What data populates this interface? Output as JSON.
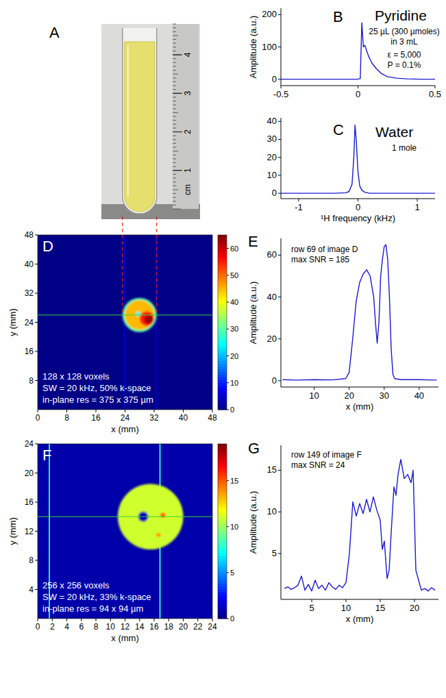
{
  "chart_data": [
    {
      "type": "photo",
      "panel": "A",
      "ylim": [
        0,
        4.8
      ],
      "yticks": [
        1,
        2,
        3,
        4
      ],
      "ylabel": "cm"
    },
    {
      "type": "line",
      "panel": "B",
      "title": "Pyridine",
      "annotations": [
        "25 µL (300 µmoles)",
        "in 3 mL",
        "ε = 5,000",
        "P = 0.1%"
      ],
      "ylabel": "Amplitude (a.u.)",
      "xlim": [
        -0.5,
        0.5
      ],
      "xticks": [
        -0.5,
        0,
        0.5
      ],
      "ylim": [
        -20,
        220
      ],
      "yticks": [
        0,
        100,
        200
      ],
      "color": "#1a1acc",
      "x": [
        -0.5,
        -0.3,
        -0.1,
        0,
        0.015,
        0.025,
        0.035,
        0.045,
        0.055,
        0.07,
        0.09,
        0.12,
        0.15,
        0.19,
        0.25,
        0.32,
        0.4,
        0.5
      ],
      "values": [
        0,
        0,
        0,
        0,
        2,
        175,
        100,
        105,
        90,
        70,
        50,
        32,
        18,
        8,
        3,
        1,
        0,
        0
      ]
    },
    {
      "type": "line",
      "panel": "C",
      "title": "Water",
      "annotations": [
        "1 mole"
      ],
      "xlabel": "¹H frequency (kHz)",
      "xlim": [
        -1.3,
        1.3
      ],
      "xticks": [
        -1,
        0,
        1
      ],
      "ylim": [
        -3,
        42
      ],
      "yticks": [
        0,
        10,
        20,
        30,
        40
      ],
      "color": "#1a1acc",
      "x": [
        -1.3,
        -0.8,
        -0.4,
        -0.2,
        -0.15,
        -0.1,
        -0.07,
        -0.05,
        -0.03,
        0,
        0.03,
        0.07,
        0.12,
        0.2,
        0.4,
        0.8,
        1.3
      ],
      "values": [
        0,
        0,
        0,
        0.3,
        1,
        5,
        20,
        38,
        30,
        12,
        4,
        1.5,
        0.5,
        0,
        0,
        0,
        0
      ]
    },
    {
      "type": "heatmap",
      "panel": "D",
      "annotations": [
        "128 x 128 voxels",
        "SW = 20 kHz, 50% k-space",
        "in-plane res = 375 x 375 µm"
      ],
      "xlabel": "x (mm)",
      "ylabel": "y (mm)",
      "xlim": [
        0,
        48
      ],
      "xticks": [
        0,
        8,
        16,
        24,
        32,
        40,
        48
      ],
      "ylim": [
        0,
        48
      ],
      "yticks": [
        8,
        16,
        24,
        32,
        40,
        48
      ],
      "background": 0.5,
      "lines": [
        {
          "x": 23.8,
          "value": 5
        },
        {
          "x": 32.5,
          "value": 5
        }
      ],
      "shapes": [
        {
          "x": 28,
          "y": 26,
          "r": 4.7,
          "value": 30
        },
        {
          "x": 28,
          "y": 26,
          "r": 4.1,
          "value": 45
        },
        {
          "x": 30,
          "y": 25,
          "r": 2,
          "value": 55
        },
        {
          "x": 30.5,
          "y": 24.8,
          "r": 1.2,
          "value": 63
        },
        {
          "x": 27.6,
          "y": 26.3,
          "r": 0.6,
          "value": 25
        }
      ],
      "profile_y": 26,
      "colorbar": {
        "range": [
          0,
          65
        ],
        "ticks": [
          0,
          10,
          20,
          30,
          40,
          50,
          60
        ]
      }
    },
    {
      "type": "line",
      "panel": "E",
      "annotations": [
        "row 69 of image D",
        "max SNR = 185"
      ],
      "xlabel": "x (mm)",
      "ylabel": "Amplitude (a.u.)",
      "xlim": [
        0.5,
        45.5
      ],
      "xticks": [
        10,
        20,
        30,
        40
      ],
      "ylim": [
        -3,
        68
      ],
      "yticks": [
        0,
        20,
        40,
        60
      ],
      "color": "#1a1acc",
      "x": [
        1,
        5,
        10,
        15,
        19,
        20,
        21,
        22,
        23,
        24,
        25,
        26,
        27,
        27.5,
        28,
        28.5,
        29,
        29.5,
        30,
        30.5,
        31,
        31.5,
        32,
        32.5,
        33,
        35,
        40,
        45
      ],
      "values": [
        0.5,
        0.3,
        0.5,
        0.4,
        1,
        4,
        20,
        38,
        47,
        51,
        53,
        50,
        40,
        28,
        18,
        28,
        50,
        58,
        64,
        65,
        58,
        40,
        15,
        3,
        1,
        0.5,
        0.5,
        0.3
      ]
    },
    {
      "type": "heatmap",
      "panel": "F",
      "annotations": [
        "256 x 256 voxels",
        "SW = 20 kHz, 33% k-space",
        "in-plane res = 94 x 94 µm"
      ],
      "xlabel": "x (mm)",
      "ylabel": "y (mm)",
      "xlim": [
        0,
        24
      ],
      "xticks": [
        0,
        2,
        4,
        6,
        8,
        10,
        12,
        14,
        16,
        18,
        20,
        22,
        24
      ],
      "ylim": [
        0,
        24
      ],
      "yticks": [
        4,
        8,
        12,
        16,
        20,
        24
      ],
      "background": 0.8,
      "lines": [
        {
          "x": 1.6,
          "value": 8
        },
        {
          "x": 16.8,
          "value": 8
        }
      ],
      "shapes": [
        {
          "x": 15.5,
          "y": 14,
          "r": 4.5,
          "value": 11
        },
        {
          "x": 14.5,
          "y": 14,
          "r": 0.7,
          "value": 1
        },
        {
          "x": 17.2,
          "y": 14.2,
          "r": 0.35,
          "value": 15
        },
        {
          "x": 16.6,
          "y": 11.5,
          "r": 0.3,
          "value": 14
        }
      ],
      "profile_y": 14,
      "colorbar": {
        "range": [
          0,
          19
        ],
        "ticks": [
          0,
          5,
          10,
          15
        ]
      }
    },
    {
      "type": "line",
      "panel": "G",
      "annotations": [
        "row 149 of image F",
        "max SNR = 24"
      ],
      "xlabel": "x (mm)",
      "ylabel": "Amplitude (a.u.)",
      "xlim": [
        0.5,
        23.5
      ],
      "xticks": [
        5,
        10,
        15,
        20
      ],
      "ylim": [
        -0.5,
        18
      ],
      "yticks": [
        5,
        10,
        15
      ],
      "color": "#1a1acc",
      "x": [
        1,
        1.5,
        2,
        2.5,
        3,
        3.5,
        4,
        4.5,
        5,
        5.5,
        6,
        6.5,
        7,
        7.5,
        8,
        8.5,
        9,
        9.5,
        10,
        10.5,
        11,
        11.5,
        12,
        12.5,
        13,
        13.5,
        14,
        14.5,
        15,
        15.3,
        15.6,
        16,
        16.3,
        16.6,
        17,
        17.3,
        17.6,
        18,
        18.5,
        19,
        19.5,
        19.8,
        20.2,
        20.6,
        21,
        21.5,
        22,
        22.5,
        23
      ],
      "values": [
        0.8,
        1,
        0.7,
        0.9,
        1.2,
        2.3,
        0.6,
        1.3,
        0.5,
        1.8,
        0.8,
        1.2,
        0.6,
        1.5,
        1,
        0.7,
        1.2,
        0.9,
        1.5,
        5,
        11.2,
        9.5,
        11,
        9.8,
        11.5,
        10,
        11.8,
        10.2,
        9,
        5.5,
        6.5,
        2,
        3,
        7.5,
        13,
        12,
        14.5,
        16.3,
        14,
        14.5,
        13.5,
        15,
        3,
        1.8,
        0.6,
        0.8,
        0.5,
        0.9,
        0.6
      ]
    }
  ]
}
